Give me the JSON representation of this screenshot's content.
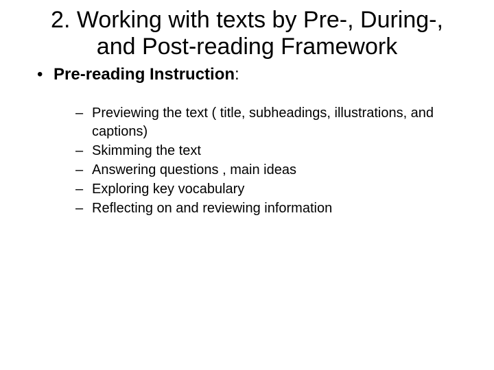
{
  "title": "2. Working with texts by Pre-, During-, and Post-reading Framework",
  "level1": {
    "label": "Pre-reading Instruction",
    "suffix": ":"
  },
  "level2": [
    "Previewing the text ( title, subheadings, illustrations, and captions)",
    "Skimming the text",
    "Answering questions , main ideas",
    "Exploring key vocabulary",
    "Reflecting on and reviewing information"
  ],
  "style": {
    "background_color": "#ffffff",
    "text_color": "#000000",
    "title_fontsize": 34,
    "level1_fontsize": 24,
    "level2_fontsize": 20,
    "font_family": "Arial, Helvetica, sans-serif"
  }
}
